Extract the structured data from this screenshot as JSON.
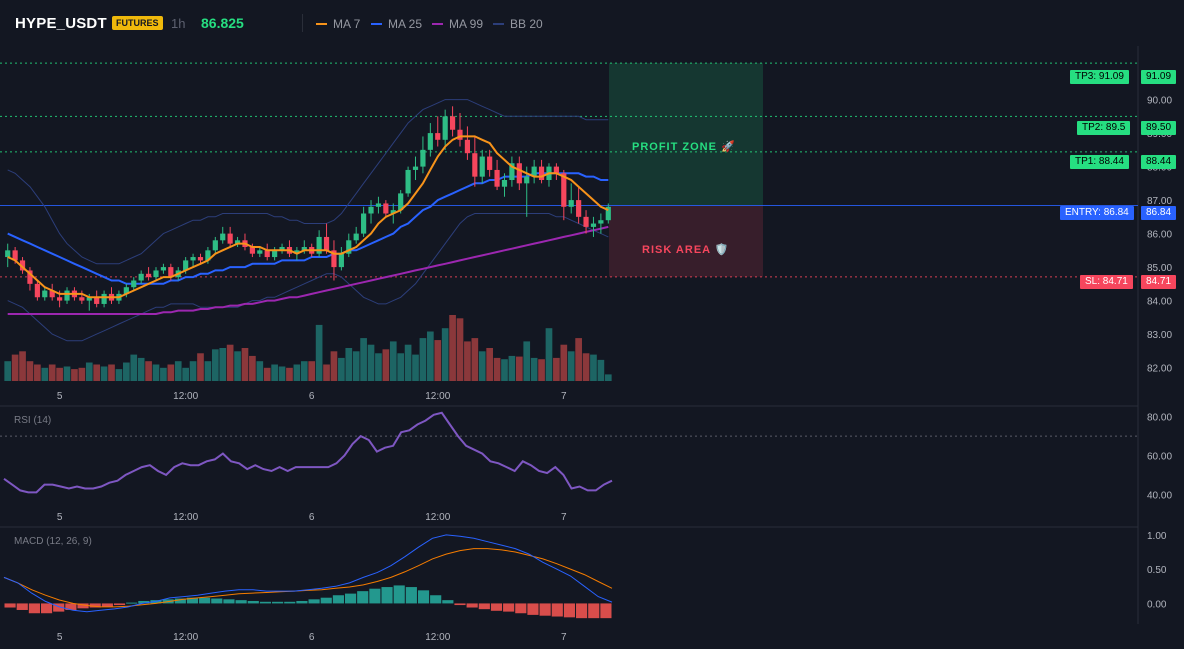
{
  "header": {
    "symbol": "HYPE_USDT",
    "badge": "FUTURES",
    "timeframe": "1h",
    "price": "86.825",
    "legend": [
      {
        "label": "MA 7",
        "color": "#f7931a"
      },
      {
        "label": "MA 25",
        "color": "#2962ff"
      },
      {
        "label": "MA 99",
        "color": "#9c27b0"
      },
      {
        "label": "BB 20",
        "color": "#2c3e7a"
      }
    ]
  },
  "levels": {
    "tp3": {
      "label": "TP3: 91.09",
      "axis": "91.09",
      "value": 91.09
    },
    "tp2": {
      "label": "TP2: 89.5",
      "axis": "89.50",
      "value": 89.5
    },
    "tp1": {
      "label": "TP1: 88.44",
      "axis": "88.44",
      "value": 88.44
    },
    "entry": {
      "label": "ENTRY: 86.84",
      "axis": "86.84",
      "value": 86.84
    },
    "sl": {
      "label": "SL: 84.71",
      "axis": "84.71",
      "value": 84.71
    }
  },
  "zones": {
    "profit": "PROFIT ZONE 🚀",
    "risk": "RISK AREA 🛡️"
  },
  "colors": {
    "up": "#26a69a",
    "down": "#ef5350",
    "candle_up": "#2ebd85",
    "candle_down": "#f6465d",
    "ma7": "#f7931a",
    "ma25": "#2962ff",
    "ma99": "#9c27b0",
    "bb": "#2c3e7a",
    "rsi": "#7e57c2",
    "macd": "#2962ff",
    "signal": "#f57c00",
    "entry": "#2962ff",
    "sl": "#f6465d",
    "tp": "#26de81"
  },
  "chart_data": [
    {
      "type": "candlestick",
      "title": "HYPE_USDT",
      "ylim": [
        81.6,
        91.6
      ],
      "yticks": [
        "90.00",
        "89.00",
        "88.00",
        "87.00",
        "86.00",
        "85.00",
        "84.00",
        "83.00",
        "82.00"
      ],
      "x_ticks": [
        "5",
        "12:00",
        "6",
        "12:00",
        "7"
      ],
      "candles": [
        [
          85.3,
          85.7,
          85.0,
          85.5
        ],
        [
          85.5,
          85.6,
          85.1,
          85.2
        ],
        [
          85.2,
          85.3,
          84.8,
          84.9
        ],
        [
          84.9,
          85.0,
          84.3,
          84.5
        ],
        [
          84.5,
          84.6,
          84.0,
          84.1
        ],
        [
          84.1,
          84.4,
          84.0,
          84.3
        ],
        [
          84.3,
          84.5,
          84.0,
          84.1
        ],
        [
          84.1,
          84.3,
          83.8,
          84.0
        ],
        [
          84.0,
          84.4,
          83.9,
          84.3
        ],
        [
          84.3,
          84.4,
          84.0,
          84.1
        ],
        [
          84.1,
          84.3,
          83.9,
          84.0
        ],
        [
          84.0,
          84.2,
          83.7,
          84.1
        ],
        [
          84.1,
          84.3,
          83.8,
          83.9
        ],
        [
          83.9,
          84.3,
          83.8,
          84.2
        ],
        [
          84.2,
          84.4,
          83.9,
          84.0
        ],
        [
          84.0,
          84.3,
          83.9,
          84.2
        ],
        [
          84.2,
          84.5,
          84.1,
          84.4
        ],
        [
          84.4,
          84.7,
          84.3,
          84.6
        ],
        [
          84.6,
          84.9,
          84.5,
          84.8
        ],
        [
          84.8,
          85.0,
          84.6,
          84.7
        ],
        [
          84.7,
          85.0,
          84.6,
          84.9
        ],
        [
          84.9,
          85.1,
          84.8,
          85.0
        ],
        [
          85.0,
          85.1,
          84.6,
          84.7
        ],
        [
          84.7,
          85.0,
          84.6,
          84.9
        ],
        [
          84.9,
          85.3,
          84.8,
          85.2
        ],
        [
          85.2,
          85.4,
          85.0,
          85.3
        ],
        [
          85.3,
          85.4,
          85.1,
          85.2
        ],
        [
          85.2,
          85.6,
          85.1,
          85.5
        ],
        [
          85.5,
          85.9,
          85.4,
          85.8
        ],
        [
          85.8,
          86.2,
          85.7,
          86.0
        ],
        [
          86.0,
          86.2,
          85.6,
          85.7
        ],
        [
          85.7,
          85.9,
          85.6,
          85.8
        ],
        [
          85.8,
          86.0,
          85.5,
          85.6
        ],
        [
          85.6,
          85.7,
          85.3,
          85.4
        ],
        [
          85.4,
          85.6,
          85.3,
          85.5
        ],
        [
          85.5,
          85.7,
          85.2,
          85.3
        ],
        [
          85.3,
          85.6,
          85.2,
          85.5
        ],
        [
          85.5,
          85.7,
          85.4,
          85.6
        ],
        [
          85.6,
          85.8,
          85.3,
          85.4
        ],
        [
          85.4,
          85.6,
          85.2,
          85.5
        ],
        [
          85.5,
          85.8,
          85.4,
          85.6
        ],
        [
          85.6,
          85.7,
          85.3,
          85.4
        ],
        [
          85.4,
          86.1,
          85.3,
          85.9
        ],
        [
          85.9,
          86.3,
          85.4,
          85.5
        ],
        [
          85.5,
          85.8,
          84.6,
          85.0
        ],
        [
          85.0,
          85.6,
          84.9,
          85.4
        ],
        [
          85.4,
          86.0,
          85.3,
          85.8
        ],
        [
          85.8,
          86.2,
          85.7,
          86.0
        ],
        [
          86.0,
          86.8,
          85.9,
          86.6
        ],
        [
          86.6,
          87.0,
          86.3,
          86.8
        ],
        [
          86.8,
          87.1,
          86.6,
          86.9
        ],
        [
          86.9,
          87.0,
          86.5,
          86.6
        ],
        [
          86.6,
          86.9,
          86.3,
          86.7
        ],
        [
          86.7,
          87.3,
          86.6,
          87.2
        ],
        [
          87.2,
          88.0,
          87.1,
          87.9
        ],
        [
          87.9,
          88.3,
          87.6,
          88.0
        ],
        [
          88.0,
          88.9,
          87.8,
          88.5
        ],
        [
          88.5,
          89.3,
          88.3,
          89.0
        ],
        [
          89.0,
          89.5,
          88.6,
          88.8
        ],
        [
          88.8,
          89.7,
          88.5,
          89.5
        ],
        [
          89.5,
          89.8,
          88.9,
          89.1
        ],
        [
          89.1,
          89.6,
          88.6,
          88.8
        ],
        [
          88.8,
          89.2,
          88.2,
          88.4
        ],
        [
          88.4,
          88.9,
          87.4,
          87.7
        ],
        [
          87.7,
          88.5,
          87.5,
          88.3
        ],
        [
          88.3,
          88.5,
          87.7,
          87.9
        ],
        [
          87.9,
          88.2,
          87.3,
          87.4
        ],
        [
          87.4,
          87.8,
          87.1,
          87.6
        ],
        [
          87.6,
          88.3,
          87.4,
          88.1
        ],
        [
          88.1,
          88.3,
          87.3,
          87.5
        ],
        [
          87.5,
          88.0,
          86.5,
          87.7
        ],
        [
          87.7,
          88.2,
          87.5,
          88.0
        ],
        [
          88.0,
          88.2,
          87.5,
          87.6
        ],
        [
          87.6,
          88.1,
          87.4,
          88.0
        ],
        [
          88.0,
          88.1,
          87.6,
          87.8
        ],
        [
          87.8,
          87.9,
          86.4,
          86.8
        ],
        [
          86.8,
          87.5,
          86.6,
          87.0
        ],
        [
          87.0,
          87.4,
          86.3,
          86.5
        ],
        [
          86.5,
          86.7,
          86.0,
          86.2
        ],
        [
          86.2,
          86.5,
          85.9,
          86.3
        ],
        [
          86.3,
          86.6,
          86.0,
          86.4
        ],
        [
          86.4,
          86.9,
          86.3,
          86.8
        ]
      ],
      "ma7": [
        85.3,
        85.2,
        85.0,
        84.8,
        84.6,
        84.4,
        84.3,
        84.2,
        84.2,
        84.2,
        84.2,
        84.1,
        84.1,
        84.1,
        84.1,
        84.1,
        84.2,
        84.3,
        84.4,
        84.5,
        84.6,
        84.7,
        84.7,
        84.8,
        84.9,
        85.0,
        85.1,
        85.2,
        85.4,
        85.5,
        85.6,
        85.7,
        85.7,
        85.6,
        85.6,
        85.5,
        85.5,
        85.5,
        85.5,
        85.4,
        85.5,
        85.5,
        85.5,
        85.5,
        85.4,
        85.4,
        85.5,
        85.6,
        85.8,
        86.0,
        86.3,
        86.5,
        86.6,
        86.7,
        86.9,
        87.2,
        87.5,
        87.9,
        88.3,
        88.6,
        88.8,
        88.9,
        88.9,
        88.9,
        88.8,
        88.7,
        88.4,
        88.2,
        88.0,
        87.9,
        87.8,
        87.7,
        87.7,
        87.8,
        87.8,
        87.7,
        87.6,
        87.4,
        87.2,
        87.0,
        86.8,
        86.7
      ],
      "ma25": [
        86.0,
        85.9,
        85.8,
        85.7,
        85.6,
        85.5,
        85.4,
        85.3,
        85.2,
        85.1,
        85.0,
        84.9,
        84.8,
        84.7,
        84.6,
        84.6,
        84.5,
        84.5,
        84.5,
        84.5,
        84.5,
        84.5,
        84.6,
        84.6,
        84.7,
        84.7,
        84.8,
        84.8,
        84.9,
        84.9,
        85.0,
        85.0,
        85.0,
        85.1,
        85.1,
        85.1,
        85.1,
        85.2,
        85.2,
        85.2,
        85.2,
        85.3,
        85.3,
        85.3,
        85.4,
        85.4,
        85.5,
        85.5,
        85.6,
        85.7,
        85.8,
        85.9,
        86.0,
        86.2,
        86.3,
        86.5,
        86.7,
        86.8,
        87.0,
        87.1,
        87.2,
        87.3,
        87.4,
        87.5,
        87.5,
        87.6,
        87.6,
        87.7,
        87.7,
        87.7,
        87.7,
        87.8,
        87.8,
        87.8,
        87.8,
        87.8,
        87.8,
        87.8,
        87.7,
        87.7,
        87.6,
        87.6
      ],
      "ma99": [
        83.6,
        83.6,
        83.6,
        83.6,
        83.6,
        83.6,
        83.6,
        83.6,
        83.6,
        83.6,
        83.6,
        83.6,
        83.6,
        83.6,
        83.6,
        83.6,
        83.6,
        83.6,
        83.6,
        83.6,
        83.6,
        83.65,
        83.65,
        83.7,
        83.7,
        83.7,
        83.75,
        83.75,
        83.8,
        83.8,
        83.85,
        83.85,
        83.9,
        83.9,
        83.95,
        84.0,
        84.0,
        84.05,
        84.1,
        84.1,
        84.15,
        84.2,
        84.25,
        84.3,
        84.35,
        84.4,
        84.45,
        84.5,
        84.55,
        84.6,
        84.65,
        84.7,
        84.75,
        84.8,
        84.85,
        84.9,
        84.95,
        85.0,
        85.05,
        85.1,
        85.15,
        85.2,
        85.25,
        85.3,
        85.35,
        85.4,
        85.45,
        85.5,
        85.55,
        85.6,
        85.65,
        85.7,
        85.75,
        85.8,
        85.85,
        85.9,
        85.95,
        86.0,
        86.05,
        86.1,
        86.15,
        86.2
      ],
      "bb_upper": [
        87.9,
        87.8,
        87.6,
        87.4,
        87.1,
        86.8,
        86.4,
        86.0,
        85.7,
        85.5,
        85.3,
        85.2,
        85.1,
        85.1,
        85.1,
        85.1,
        85.2,
        85.3,
        85.4,
        85.6,
        85.8,
        86.0,
        86.1,
        86.2,
        86.3,
        86.4,
        86.4,
        86.5,
        86.5,
        86.6,
        86.6,
        86.6,
        86.6,
        86.6,
        86.6,
        86.6,
        86.5,
        86.5,
        86.4,
        86.4,
        86.3,
        86.3,
        86.3,
        86.3,
        86.4,
        86.6,
        86.9,
        87.2,
        87.5,
        87.8,
        88.1,
        88.4,
        88.7,
        89.0,
        89.3,
        89.5,
        89.7,
        89.8,
        89.9,
        90.0,
        90.0,
        90.0,
        90.0,
        89.9,
        89.8,
        89.7,
        89.6,
        89.5,
        89.5,
        89.5,
        89.5,
        89.5,
        89.5,
        89.5,
        89.5,
        89.5,
        89.5,
        89.5,
        89.4,
        89.4,
        89.4,
        89.4
      ],
      "bb_lower": [
        84.0,
        83.9,
        83.8,
        83.6,
        83.4,
        83.2,
        83.0,
        82.9,
        82.8,
        82.8,
        82.8,
        82.9,
        83.0,
        83.1,
        83.2,
        83.3,
        83.4,
        83.5,
        83.6,
        83.7,
        83.8,
        83.8,
        83.9,
        83.9,
        83.9,
        83.9,
        83.8,
        83.8,
        83.8,
        83.8,
        83.8,
        83.8,
        83.9,
        84.0,
        84.0,
        84.1,
        84.1,
        84.2,
        84.3,
        84.4,
        84.5,
        84.6,
        84.7,
        84.8,
        84.8,
        84.7,
        84.5,
        84.3,
        84.1,
        84.0,
        83.9,
        83.9,
        84.0,
        84.1,
        84.3,
        84.5,
        84.8,
        85.1,
        85.4,
        85.7,
        86.0,
        86.3,
        86.5,
        86.6,
        86.6,
        86.6,
        86.6,
        86.6,
        86.6,
        86.6,
        86.6,
        86.6,
        86.6,
        86.6,
        86.5,
        86.5,
        86.4,
        86.3,
        86.2,
        86.1,
        86.0,
        85.9
      ],
      "volumes": [
        0.3,
        0.4,
        0.45,
        0.3,
        0.25,
        0.2,
        0.25,
        0.2,
        0.22,
        0.18,
        0.2,
        0.28,
        0.25,
        0.22,
        0.25,
        0.18,
        0.28,
        0.4,
        0.35,
        0.3,
        0.25,
        0.2,
        0.25,
        0.3,
        0.2,
        0.3,
        0.42,
        0.3,
        0.48,
        0.5,
        0.55,
        0.45,
        0.5,
        0.38,
        0.3,
        0.2,
        0.25,
        0.22,
        0.2,
        0.25,
        0.3,
        0.3,
        0.85,
        0.25,
        0.45,
        0.35,
        0.5,
        0.45,
        0.65,
        0.55,
        0.42,
        0.48,
        0.6,
        0.42,
        0.55,
        0.4,
        0.65,
        0.75,
        0.62,
        0.8,
        1.0,
        0.95,
        0.6,
        0.65,
        0.45,
        0.5,
        0.35,
        0.33,
        0.38,
        0.37,
        0.6,
        0.35,
        0.33,
        0.8,
        0.35,
        0.55,
        0.45,
        0.65,
        0.42,
        0.4,
        0.32,
        0.1
      ]
    },
    {
      "type": "line",
      "title": "RSI (14)",
      "ylim": [
        35,
        85
      ],
      "yticks": [
        "80.00",
        "60.00",
        "40.00"
      ],
      "x_ticks": [
        "5",
        "12:00",
        "6",
        "12:00",
        "7"
      ],
      "values": [
        48,
        45,
        42,
        41,
        41,
        45,
        45,
        44,
        43,
        44,
        43,
        43,
        44,
        46,
        47,
        50,
        52,
        54,
        55,
        52,
        50,
        54,
        56,
        55,
        55,
        57,
        58,
        61,
        57,
        56,
        53,
        55,
        53,
        52,
        54,
        52,
        54,
        54,
        54,
        54,
        54,
        56,
        60,
        66,
        70,
        68,
        62,
        64,
        65,
        72,
        73,
        76,
        78,
        81,
        82,
        76,
        70,
        65,
        63,
        61,
        57,
        56,
        54,
        52,
        57,
        55,
        52,
        51,
        54,
        50,
        43,
        44,
        42,
        42,
        45,
        47
      ],
      "overbought": 70
    },
    {
      "type": "line",
      "title": "MACD (12, 26, 9)",
      "ylim": [
        -0.3,
        1.1
      ],
      "yticks": [
        "1.00",
        "0.50",
        "0.00"
      ],
      "x_ticks": [
        "5",
        "12:00",
        "6",
        "12:00",
        "7"
      ],
      "macd": [
        0.38,
        0.3,
        0.15,
        0.03,
        -0.05,
        -0.1,
        -0.12,
        -0.1,
        -0.08,
        -0.05,
        0.0,
        0.03,
        0.08,
        0.1,
        0.12,
        0.15,
        0.18,
        0.2,
        0.2,
        0.18,
        0.18,
        0.18,
        0.2,
        0.22,
        0.25,
        0.3,
        0.38,
        0.45,
        0.55,
        0.68,
        0.82,
        0.95,
        1.0,
        0.98,
        0.95,
        0.9,
        0.85,
        0.8,
        0.72,
        0.6,
        0.5,
        0.4,
        0.25,
        0.1,
        0.02
      ],
      "signal": [
        0.38,
        0.3,
        0.2,
        0.12,
        0.05,
        0.0,
        -0.03,
        -0.05,
        -0.05,
        -0.04,
        -0.02,
        0.0,
        0.03,
        0.06,
        0.08,
        0.1,
        0.12,
        0.14,
        0.15,
        0.16,
        0.17,
        0.18,
        0.19,
        0.2,
        0.22,
        0.24,
        0.27,
        0.32,
        0.38,
        0.46,
        0.55,
        0.65,
        0.72,
        0.77,
        0.8,
        0.8,
        0.78,
        0.75,
        0.7,
        0.65,
        0.58,
        0.5,
        0.42,
        0.32,
        0.22
      ],
      "histogram": [
        -0.05,
        -0.08,
        -0.12,
        -0.12,
        -0.1,
        -0.08,
        -0.06,
        -0.05,
        -0.04,
        -0.02,
        0.01,
        0.03,
        0.04,
        0.05,
        0.06,
        0.07,
        0.07,
        0.06,
        0.05,
        0.04,
        0.03,
        0.02,
        0.02,
        0.02,
        0.03,
        0.05,
        0.07,
        0.1,
        0.12,
        0.15,
        0.18,
        0.2,
        0.22,
        0.2,
        0.16,
        0.1,
        0.04,
        -0.02,
        -0.05,
        -0.07,
        -0.09,
        -0.1,
        -0.12,
        -0.14,
        -0.15,
        -0.16,
        -0.17,
        -0.18,
        -0.18,
        -0.18
      ]
    }
  ]
}
